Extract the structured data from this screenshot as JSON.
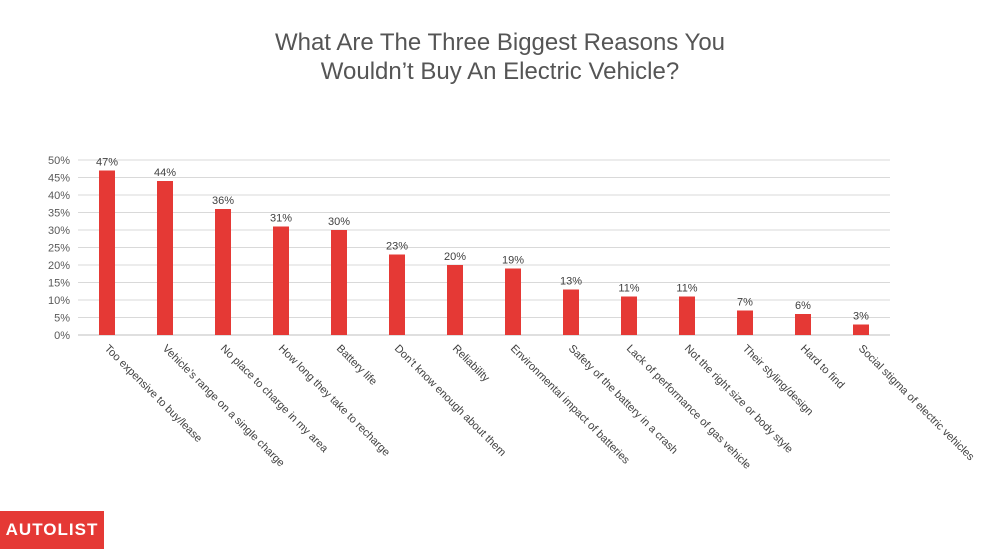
{
  "chart_data": {
    "type": "bar",
    "title": "What Are The Three Biggest Reasons You Wouldn’t Buy An Electric Vehicle?",
    "title_lines": [
      "What Are The Three Biggest Reasons You",
      "Wouldn’t Buy An Electric Vehicle?"
    ],
    "xlabel": "",
    "ylabel": "",
    "ylim": [
      0,
      50
    ],
    "y_ticks": [
      0,
      5,
      10,
      15,
      20,
      25,
      30,
      35,
      40,
      45,
      50
    ],
    "y_tick_labels": [
      "0%",
      "5%",
      "10%",
      "15%",
      "20%",
      "25%",
      "30%",
      "35%",
      "40%",
      "45%",
      "50%"
    ],
    "grid": true,
    "categories": [
      "Too expensive to buy/lease",
      "Vehicle’s range on a single charge",
      "No place to charge in my area",
      "How long they take to recharge",
      "Battery life",
      "Don’t know enough about them",
      "Reliability",
      "Environmental impact of batteries",
      "Safety of the battery in a crash",
      "Lack of performance of gas vehicle",
      "Not the right size or body style",
      "Their styling/design",
      "Hard to find",
      "Social stigma of electric vehicles"
    ],
    "values": [
      47,
      44,
      36,
      31,
      30,
      23,
      20,
      19,
      13,
      11,
      11,
      7,
      6,
      3
    ],
    "data_labels": [
      "47%",
      "44%",
      "36%",
      "31%",
      "30%",
      "23%",
      "20%",
      "19%",
      "13%",
      "11%",
      "11%",
      "7%",
      "6%",
      "3%"
    ],
    "bar_color": "#e53935"
  },
  "logo": {
    "text": "AUTOLIST",
    "color": "#e53935"
  }
}
